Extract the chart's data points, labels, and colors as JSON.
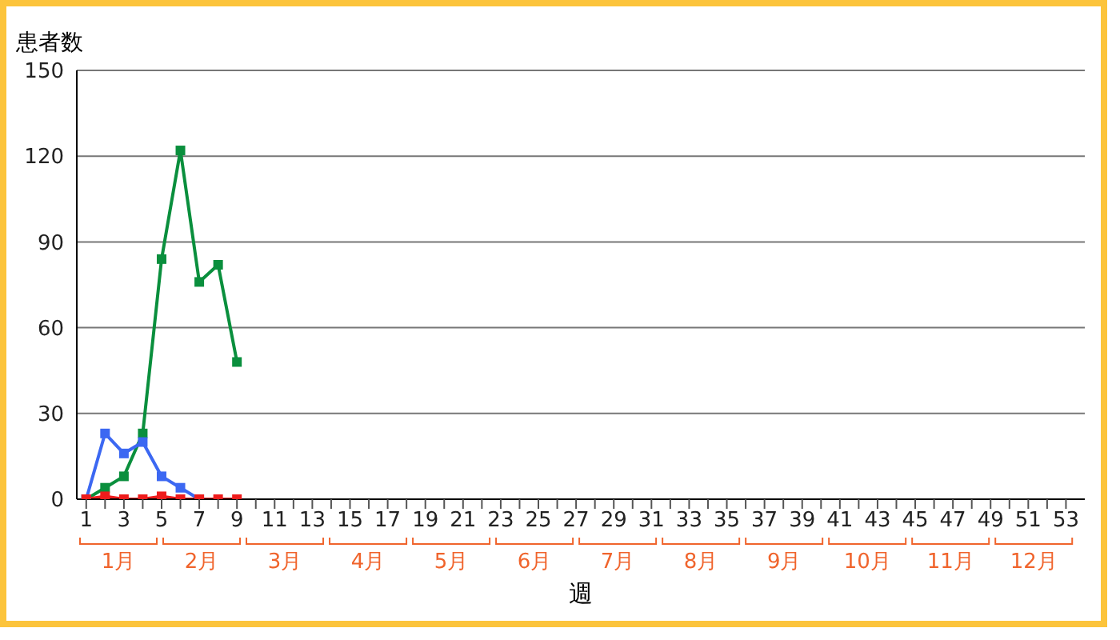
{
  "chart_data": {
    "type": "line",
    "xlabel": "週",
    "ylabel": "患者数",
    "x": [
      1,
      2,
      3,
      4,
      5,
      6,
      7,
      8,
      9
    ],
    "series": [
      {
        "color": "#0a8f3d",
        "values": [
          0,
          4,
          8,
          23,
          84,
          122,
          76,
          82,
          48
        ]
      },
      {
        "color": "#3c68f2",
        "values": [
          0,
          23,
          16,
          20,
          8,
          4,
          0,
          null,
          null
        ]
      },
      {
        "color": "#ee1c1c",
        "values": [
          0,
          1,
          0,
          0,
          1,
          0,
          0,
          0,
          0
        ]
      }
    ],
    "xlim": [
      0.5,
      54
    ],
    "xticks": [
      1,
      {
        "value": 2,
        "label": null
      },
      3,
      {
        "value": 4,
        "label": null
      },
      5,
      {
        "value": 6,
        "label": null
      },
      7,
      {
        "value": 8,
        "label": null
      },
      9,
      {
        "value": 10,
        "label": null
      },
      11,
      {
        "value": 12,
        "label": null
      },
      13,
      {
        "value": 14,
        "label": null
      },
      15,
      {
        "value": 16,
        "label": null
      },
      17,
      {
        "value": 18,
        "label": null
      },
      19,
      {
        "value": 20,
        "label": null
      },
      21,
      {
        "value": 22,
        "label": null
      },
      23,
      {
        "value": 24,
        "label": null
      },
      25,
      {
        "value": 26,
        "label": null
      },
      27,
      {
        "value": 28,
        "label": null
      },
      29,
      {
        "value": 30,
        "label": null
      },
      31,
      {
        "value": 32,
        "label": null
      },
      33,
      {
        "value": 34,
        "label": null
      },
      35,
      {
        "value": 36,
        "label": null
      },
      37,
      {
        "value": 38,
        "label": null
      },
      39,
      {
        "value": 40,
        "label": null
      },
      41,
      {
        "value": 42,
        "label": null
      },
      43,
      {
        "value": 44,
        "label": null
      },
      45,
      {
        "value": 46,
        "label": null
      },
      47,
      {
        "value": 48,
        "label": null
      },
      49,
      {
        "value": 50,
        "label": null
      },
      51,
      {
        "value": 52,
        "label": null
      },
      53
    ],
    "annotations": [
      "1月",
      "2月",
      "3月",
      "4月",
      "5月",
      "6月",
      "7月",
      "8月",
      "9月",
      "10月",
      "11月",
      "12月"
    ],
    "ylim": [
      0,
      150
    ],
    "yticks": [
      0,
      30,
      60,
      90,
      120,
      150
    ],
    "grid": "y",
    "marker": "square",
    "line_style": "solid",
    "legend": false
  }
}
